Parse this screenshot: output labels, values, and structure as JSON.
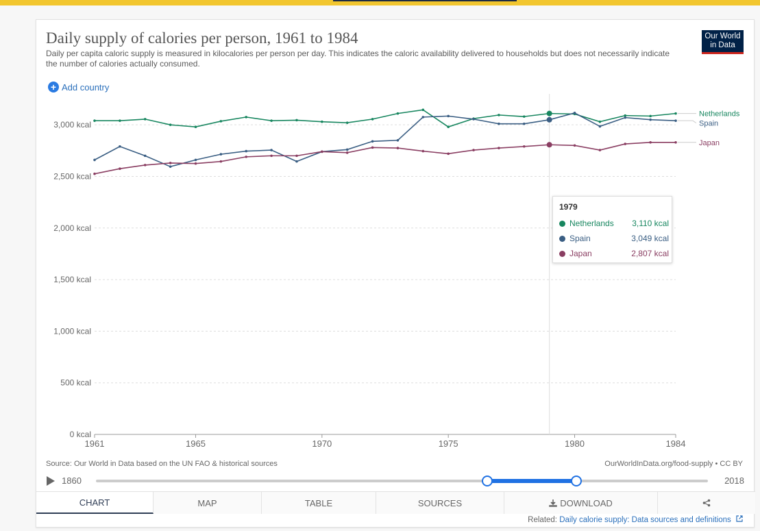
{
  "header": {
    "title": "Daily supply of calories per person, 1961 to 1984",
    "subtitle": "Daily per capita caloric supply is measured in kilocalories per person per day. This indicates the caloric availability delivered to households but does not necessarily indicate the number of calories actually consumed.",
    "logo_line1": "Our World",
    "logo_line2": "in Data",
    "add_country_label": "Add country"
  },
  "colors": {
    "Netherlands": "#17865f",
    "Spain": "#3a5e83",
    "Japan": "#8a3e62",
    "accent": "#1f71e3",
    "banner": "#f2c62f"
  },
  "chart_data": {
    "type": "line",
    "x": [
      1961,
      1962,
      1963,
      1964,
      1965,
      1966,
      1967,
      1968,
      1969,
      1970,
      1971,
      1972,
      1973,
      1974,
      1975,
      1976,
      1977,
      1978,
      1979,
      1980,
      1981,
      1982,
      1983,
      1984
    ],
    "series": [
      {
        "name": "Netherlands",
        "values": [
          3040,
          3040,
          3055,
          3000,
          2980,
          3035,
          3075,
          3040,
          3045,
          3030,
          3020,
          3055,
          3110,
          3145,
          2980,
          3060,
          3095,
          3080,
          3110,
          3105,
          3030,
          3090,
          3085,
          3110
        ]
      },
      {
        "name": "Spain",
        "values": [
          2660,
          2790,
          2700,
          2595,
          2660,
          2715,
          2745,
          2755,
          2645,
          2740,
          2760,
          2840,
          2850,
          3075,
          3085,
          3055,
          3010,
          3010,
          3049,
          3115,
          2985,
          3070,
          3050,
          3040
        ]
      },
      {
        "name": "Japan",
        "values": [
          2525,
          2575,
          2610,
          2630,
          2625,
          2645,
          2690,
          2700,
          2700,
          2740,
          2730,
          2780,
          2775,
          2745,
          2720,
          2755,
          2775,
          2790,
          2807,
          2800,
          2755,
          2815,
          2830,
          2830
        ]
      }
    ],
    "y_ticks": [
      "0 kcal",
      "500 kcal",
      "1,000 kcal",
      "1,500 kcal",
      "2,000 kcal",
      "2,500 kcal",
      "3,000 kcal"
    ],
    "x_ticks": [
      "1961",
      "1965",
      "1970",
      "1975",
      "1980",
      "1984"
    ],
    "ylim": [
      0,
      3250
    ],
    "xlim": [
      1961,
      1984
    ],
    "grid": "horizontal dashed",
    "legend": "line-end labels, right",
    "highlight_year": 1979
  },
  "tooltip": {
    "year": "1979",
    "rows": [
      {
        "name": "Netherlands",
        "value": "3,110 kcal"
      },
      {
        "name": "Spain",
        "value": "3,049 kcal"
      },
      {
        "name": "Japan",
        "value": "2,807 kcal"
      }
    ]
  },
  "footer": {
    "source": "Source: Our World in Data based on the UN FAO & historical sources",
    "license": "OurWorldInData.org/food-supply • CC BY",
    "timeline_start": "1860",
    "timeline_end": "2018",
    "timeline_range": [
      1961,
      1984
    ],
    "related_label": "Related:",
    "related_link": "Daily calorie supply: Data sources and definitions"
  },
  "tabs": [
    "CHART",
    "MAP",
    "TABLE",
    "SOURCES",
    "DOWNLOAD"
  ],
  "share_icon": "share-icon",
  "download_icon": "download-icon"
}
